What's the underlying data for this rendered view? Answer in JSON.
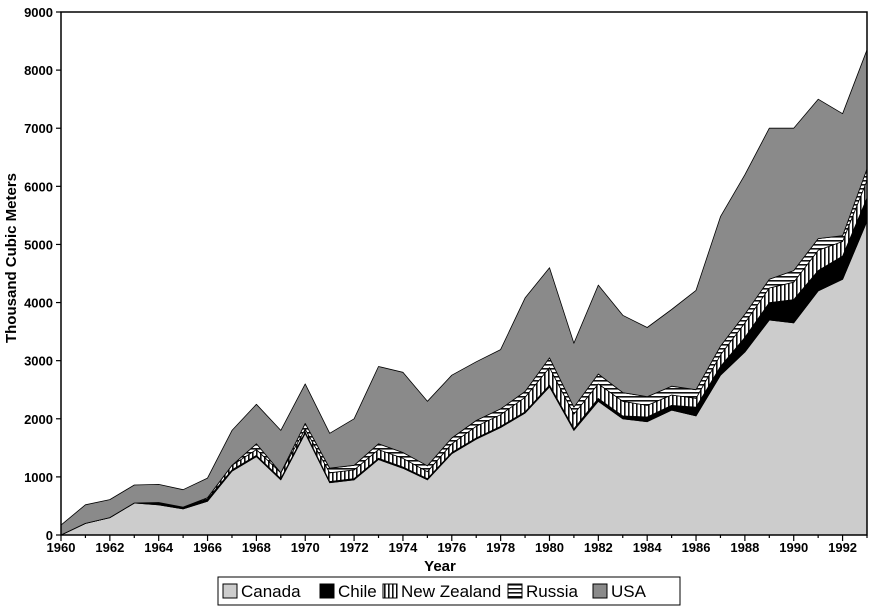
{
  "chart_data": {
    "type": "area",
    "stacked": true,
    "xlabel": "Year",
    "ylabel": "Thousand Cubic Meters",
    "ylim": [
      0,
      9000
    ],
    "xlim": [
      1960,
      1993
    ],
    "y_ticks": [
      0,
      1000,
      2000,
      3000,
      4000,
      5000,
      6000,
      7000,
      8000,
      9000
    ],
    "x_ticks": [
      1960,
      1962,
      1964,
      1966,
      1968,
      1970,
      1972,
      1974,
      1976,
      1978,
      1980,
      1982,
      1984,
      1986,
      1988,
      1990,
      1992
    ],
    "grid": false,
    "legend_position": "bottom",
    "x": [
      1960,
      1961,
      1962,
      1963,
      1964,
      1965,
      1966,
      1967,
      1968,
      1969,
      1970,
      1971,
      1972,
      1973,
      1974,
      1975,
      1976,
      1977,
      1978,
      1979,
      1980,
      1981,
      1982,
      1983,
      1984,
      1985,
      1986,
      1987,
      1988,
      1989,
      1990,
      1991,
      1992,
      1993
    ],
    "series": [
      {
        "name": "Canada",
        "values": [
          0,
          200,
          300,
          550,
          520,
          450,
          580,
          1100,
          1350,
          950,
          1750,
          900,
          950,
          1300,
          1150,
          950,
          1400,
          1650,
          1850,
          2100,
          2550,
          1800,
          2300,
          2000,
          1950,
          2150,
          2050,
          2750,
          3150,
          3700,
          3650,
          4200,
          4400,
          5400
        ]
      },
      {
        "name": "Chile",
        "values": [
          0,
          0,
          0,
          0,
          40,
          30,
          40,
          20,
          20,
          20,
          20,
          20,
          20,
          20,
          20,
          20,
          20,
          20,
          20,
          20,
          30,
          30,
          50,
          50,
          80,
          80,
          150,
          150,
          250,
          300,
          400,
          350,
          400,
          400
        ]
      },
      {
        "name": "New Zealand",
        "values": [
          0,
          0,
          0,
          0,
          0,
          0,
          20,
          80,
          100,
          100,
          50,
          150,
          150,
          150,
          150,
          120,
          150,
          200,
          200,
          250,
          300,
          250,
          250,
          250,
          200,
          180,
          150,
          200,
          250,
          250,
          300,
          350,
          250,
          300
        ]
      },
      {
        "name": "Russia",
        "values": [
          0,
          0,
          0,
          0,
          0,
          0,
          0,
          0,
          100,
          0,
          100,
          80,
          80,
          100,
          100,
          100,
          100,
          100,
          100,
          100,
          170,
          120,
          170,
          150,
          150,
          150,
          150,
          150,
          150,
          150,
          200,
          200,
          100,
          200
        ]
      },
      {
        "name": "USA",
        "values": [
          170,
          320,
          310,
          310,
          310,
          300,
          340,
          600,
          680,
          730,
          680,
          600,
          800,
          1330,
          1380,
          1110,
          1080,
          1010,
          1020,
          1610,
          1550,
          1100,
          1530,
          1330,
          1190,
          1320,
          1710,
          2230,
          2400,
          2600,
          2450,
          2400,
          2100,
          2050
        ]
      }
    ]
  }
}
